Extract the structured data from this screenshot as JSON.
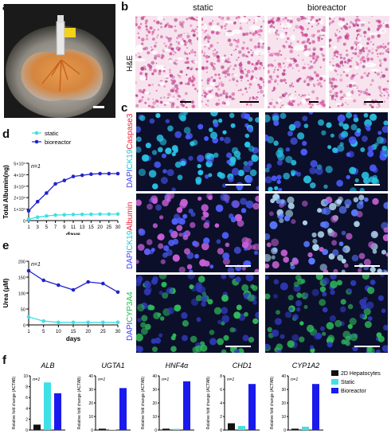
{
  "panels": {
    "a": "a",
    "b": "b",
    "c": "c",
    "d": "d",
    "e": "e",
    "f": "f"
  },
  "b": {
    "col_static": "static",
    "col_bioreactor": "bioreactor",
    "row_label": "H&E"
  },
  "c": {
    "row1": [
      "DAPI",
      "CK19",
      "Caspase3"
    ],
    "row2": [
      "DAPI",
      "CK19",
      "Albumin"
    ],
    "row3": [
      "DAPI",
      "CYP3A4"
    ],
    "colors": {
      "dapi": "#3a3aff",
      "ck19": "#18c6d6",
      "red": "#e8203a",
      "green": "#22b84a"
    }
  },
  "chart_data": [
    {
      "type": "line",
      "panel": "d",
      "annotation": "n=1",
      "ylabel": "Total Albumin(ng)",
      "xlabel": "days",
      "x": [
        1,
        3,
        5,
        7,
        9,
        11,
        13,
        15,
        20,
        25,
        30
      ],
      "xticks": [
        "1",
        "3",
        "5",
        "7",
        "9",
        "11",
        "13",
        "15",
        "20",
        "25",
        "30"
      ],
      "ylim": [
        0,
        50000
      ],
      "yticks": [
        "0",
        "1×10⁴",
        "2×10⁴",
        "3×10⁴",
        "4×10⁴",
        "5×10⁴"
      ],
      "legend": "top-left",
      "series": [
        {
          "name": "static",
          "color": "#3fe0e6",
          "values": [
            1200,
            3000,
            4000,
            4800,
            5100,
            5300,
            5400,
            5500,
            5600,
            5600,
            5700
          ]
        },
        {
          "name": "bioreactor",
          "color": "#2222cc",
          "values": [
            8500,
            16500,
            24000,
            32000,
            35000,
            38500,
            39500,
            40500,
            41000,
            41000,
            41000
          ]
        }
      ]
    },
    {
      "type": "line",
      "panel": "e",
      "annotation": "n=1",
      "ylabel": "Urea (μM)",
      "xlabel": "days",
      "x": [
        1,
        5,
        10,
        15,
        20,
        25,
        30
      ],
      "xticks": [
        "1",
        "5",
        "10",
        "15",
        "20",
        "25",
        "30"
      ],
      "ylim": [
        0,
        200
      ],
      "yticks": [
        "0",
        "50",
        "100",
        "150",
        "200"
      ],
      "series": [
        {
          "name": "static",
          "color": "#3fe0e6",
          "values": [
            25,
            12,
            8,
            8,
            8,
            8,
            8
          ]
        },
        {
          "name": "bioreactor",
          "color": "#2222cc",
          "values": [
            170,
            140,
            125,
            110,
            135,
            130,
            103
          ]
        }
      ]
    },
    {
      "type": "bar",
      "panel": "f",
      "ylabel": "Relative fold change (ACTAB)",
      "legend": "right",
      "series_names": [
        "2D Hepatocytes",
        "Static",
        "Bioreactor"
      ],
      "series_colors": [
        "#111111",
        "#3fe0e6",
        "#1a1aee"
      ],
      "genes": [
        {
          "gene": "ALB",
          "annotation": "n=1",
          "ylim": [
            0,
            10
          ],
          "yticks": [
            "0",
            "2",
            "4",
            "6",
            "8",
            "10"
          ],
          "values": [
            1,
            8.8,
            6.8
          ]
        },
        {
          "gene": "UGTA1",
          "annotation": "n=1",
          "ylim": [
            0,
            40
          ],
          "yticks": [
            "0",
            "10",
            "20",
            "30",
            "40"
          ],
          "values": [
            1,
            0.3,
            31
          ]
        },
        {
          "gene": "HNF4α",
          "annotation": "n=1",
          "ylim": [
            0,
            40
          ],
          "yticks": [
            "0",
            "10",
            "20",
            "30",
            "40"
          ],
          "values": [
            1,
            0.8,
            36
          ]
        },
        {
          "gene": "CHD1",
          "annotation": "n=1",
          "ylim": [
            0,
            8
          ],
          "yticks": [
            "0",
            "2",
            "4",
            "6",
            "8"
          ],
          "values": [
            1,
            0.6,
            6.8
          ]
        },
        {
          "gene": "CYP1A2",
          "annotation": "n=1",
          "ylim": [
            0,
            40
          ],
          "yticks": [
            "0",
            "10",
            "20",
            "30",
            "40"
          ],
          "values": [
            1,
            2.5,
            34
          ]
        }
      ]
    }
  ]
}
